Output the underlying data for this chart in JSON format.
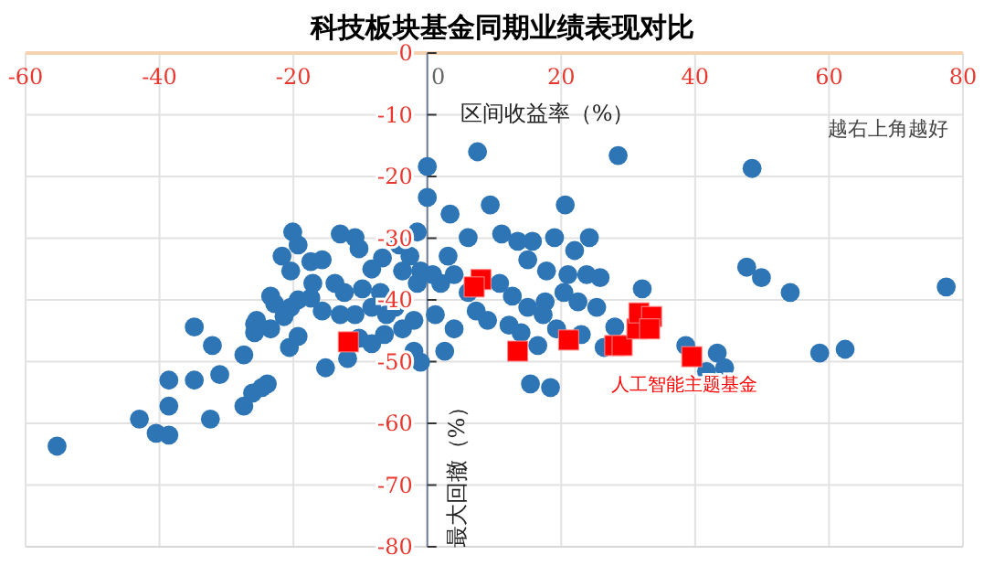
{
  "chart_data": {
    "type": "scatter",
    "title": "科技板块基金同期业绩表现对比",
    "xlabel": "区间收益率（%）",
    "ylabel": "最大回撤（%）",
    "annotations": [
      "越右上角越好"
    ],
    "xlim": [
      -60,
      80
    ],
    "ylim": [
      -80,
      0
    ],
    "xticks": [
      -60,
      -40,
      -20,
      0,
      20,
      40,
      60,
      80
    ],
    "yticks": [
      0,
      -10,
      -20,
      -30,
      -40,
      -50,
      -60,
      -70,
      -80
    ],
    "grid": true,
    "series": [
      {
        "color": "#2e75b6",
        "marker": "circle",
        "x": [
          -55.3,
          -43,
          -40.5,
          -38.6,
          -38.6,
          -38.6,
          -34.8,
          -32.4,
          -34.8,
          -32.1,
          -31,
          -27.4,
          -26.1,
          -24.7,
          -23.9,
          -25.8,
          -25.5,
          -23.4,
          -21.4,
          -20.4,
          -19.3,
          -17.4,
          -20.6,
          -19.3,
          -23.4,
          -22.8,
          -27.4,
          -25.8,
          -15.2,
          -11.9,
          -20.1,
          -19.3,
          -21.7,
          -20.4,
          -17.4,
          -15.7,
          -13,
          -10.8,
          -10.2,
          -6.7,
          -8.3,
          -3.7,
          -1,
          -13.8,
          -12.4,
          -9.7,
          -7,
          -17.1,
          -15.7,
          -13,
          -10.8,
          -8.3,
          -6.1,
          -4.8,
          -3.7,
          -2,
          -10.2,
          -8.3,
          -6.4,
          -2,
          -1,
          0,
          0,
          3.4,
          7.5,
          9.4,
          28.5,
          20.6,
          24.2,
          48.5,
          47.7,
          49.9,
          54.2,
          77.5,
          58.6,
          62.4,
          38.6,
          43.3,
          44.4,
          41.7,
          15.4,
          18.4,
          16.5,
          23,
          26.4,
          28,
          32.1,
          6.1,
          11.1,
          13.5,
          15.7,
          19,
          22,
          15,
          17.8,
          21,
          23.8,
          25.8,
          4,
          2,
          6.1,
          10.8,
          12.7,
          15,
          17.6,
          20.4,
          22.5,
          25.3,
          7.3,
          9,
          12.2,
          14,
          17.3,
          19.3,
          4,
          2.6,
          1.2,
          3.1,
          0.8,
          -1.5,
          -2.6,
          -4.2,
          -1.5
        ],
        "values": [
          -63.7,
          -59.3,
          -61.6,
          -61.9,
          -57.2,
          -53,
          -53,
          -59.3,
          -44.4,
          -47.4,
          -52.1,
          -57.2,
          -55.1,
          -54.2,
          -53.6,
          -45.3,
          -43.3,
          -44.7,
          -42.7,
          -41.2,
          -40,
          -39.7,
          -47.7,
          -45.9,
          -39.4,
          -40.6,
          -48.9,
          -43.9,
          -51,
          -49.5,
          -29,
          -31.1,
          -32.9,
          -35.3,
          -33.8,
          -33.5,
          -29.3,
          -29.9,
          -31.7,
          -33.2,
          -35,
          -35.3,
          -35.3,
          -37.3,
          -38.8,
          -38.2,
          -38.8,
          -37.3,
          -41.8,
          -42.4,
          -42.4,
          -41.2,
          -42.4,
          -41.2,
          -44.7,
          -43.3,
          -46.2,
          -47.1,
          -45.6,
          -48.3,
          -50.1,
          -18.4,
          -23.4,
          -26.1,
          -16,
          -24.6,
          -16.6,
          -24.6,
          -29.9,
          -18.7,
          -34.7,
          -36.4,
          -38.8,
          -37.9,
          -48.6,
          -48,
          -47.4,
          -48.6,
          -51,
          -51.6,
          -53.6,
          -54.2,
          -47.4,
          -45.6,
          -47.7,
          -44.4,
          -38.2,
          -29.9,
          -29.3,
          -30.5,
          -30.5,
          -29.9,
          -32,
          -33.5,
          -35.3,
          -35.9,
          -35.9,
          -36.4,
          -35.9,
          -37.3,
          -38.8,
          -37.3,
          -39.4,
          -41.2,
          -40.3,
          -38.8,
          -40.3,
          -41.2,
          -41.8,
          -43.3,
          -44.1,
          -45.3,
          -42.4,
          -44.7,
          -44.7,
          -48.3,
          -42.4,
          -32.9,
          -35.9,
          -37.3,
          -32.9,
          -31.1,
          -29
        ]
      },
      {
        "name": "人工智能主题基金",
        "color": "#ff0000",
        "marker": "square",
        "x": [
          -11.8,
          8,
          7,
          13.5,
          21.1,
          28,
          29.1,
          31.3,
          31.6,
          33.5,
          33.2,
          39.5
        ],
        "values": [
          -46.8,
          -36.7,
          -37.9,
          -48.3,
          -46.5,
          -47.4,
          -47.4,
          -44.7,
          -42.1,
          -42.7,
          -44.7,
          -49.2
        ]
      }
    ]
  }
}
